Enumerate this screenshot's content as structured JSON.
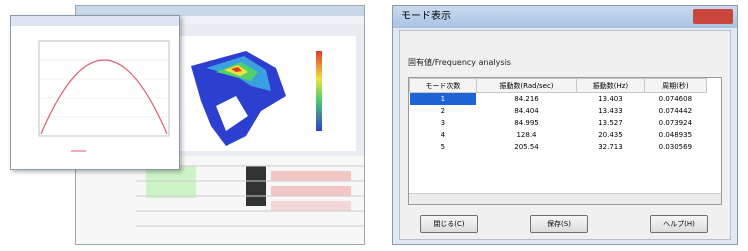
{
  "dialog": {
    "title": "モード表示",
    "label": "固有値/Frequency analysis",
    "table": {
      "header": [
        "モード次数",
        "振動数(Rad/sec)",
        "振動数(Hz)",
        "周期(秒)"
      ],
      "rows": [
        [
          "1",
          "84.216",
          "13.403",
          "0.074608"
        ],
        [
          "2",
          "84.404",
          "13.433",
          "0.074442"
        ],
        [
          "3",
          "84.995",
          "13.527",
          "0.073924"
        ],
        [
          "4",
          "128.4",
          "20.435",
          "0.048935"
        ],
        [
          "5",
          "205.54",
          "32.713",
          "0.030569"
        ]
      ]
    },
    "buttons": [
      "閉じる(C)",
      "保存(S)",
      "ヘルプ(H)"
    ]
  }
}
